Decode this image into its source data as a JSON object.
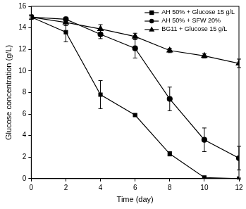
{
  "chart_data": {
    "type": "line",
    "x_label": "Time (day)",
    "y_label": "Glucose concentration (g/L)",
    "x": [
      0,
      2,
      4,
      6,
      8,
      10,
      12
    ],
    "series": [
      {
        "name": "AH 50% + Glucose 15 g/L",
        "color": "#000000",
        "marker": "square",
        "values": [
          15.0,
          13.6,
          7.8,
          5.9,
          2.3,
          0.1,
          0.0
        ],
        "errors": [
          0.1,
          0.9,
          1.3,
          0.1,
          0.2,
          0.05,
          0.05
        ]
      },
      {
        "name": "AH 50% + SFW 20%",
        "color": "#000000",
        "marker": "circle",
        "values": [
          15.0,
          14.8,
          13.4,
          12.1,
          7.4,
          3.6,
          1.9
        ],
        "errors": [
          0.2,
          0.2,
          0.4,
          0.9,
          1.1,
          1.1,
          1.1
        ]
      },
      {
        "name": "BG11 + Glucose 15 g/L",
        "color": "#000000",
        "marker": "triangle",
        "values": [
          15.0,
          14.5,
          13.9,
          13.2,
          11.9,
          11.4,
          10.7
        ],
        "errors": [
          0.2,
          0.3,
          0.4,
          0.3,
          0.2,
          0.2,
          0.4
        ]
      }
    ],
    "xlim": [
      0,
      12
    ],
    "xticks": [
      0,
      2,
      4,
      6,
      8,
      10,
      12
    ],
    "ylim": [
      0,
      16
    ],
    "yticks": [
      0,
      2,
      4,
      6,
      8,
      10,
      12,
      14,
      16
    ],
    "grid": false,
    "legend": "top right"
  }
}
